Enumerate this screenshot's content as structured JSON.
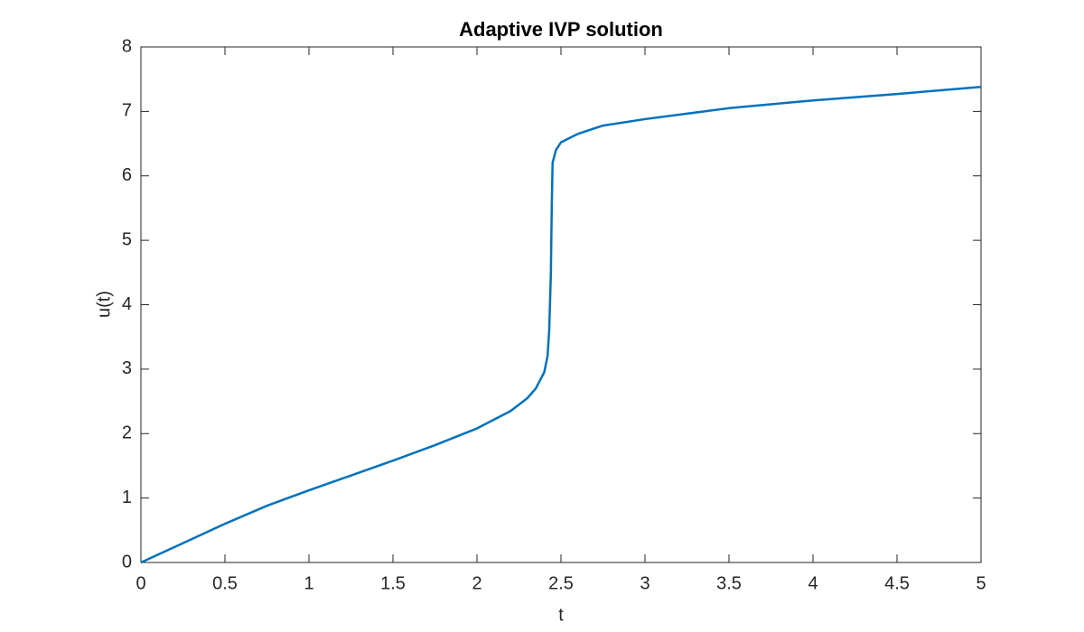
{
  "chart_data": {
    "type": "line",
    "title": "Adaptive IVP solution",
    "x_label": "t",
    "y_label": "u(t)",
    "x": [
      0,
      0.25,
      0.5,
      0.75,
      1,
      1.25,
      1.5,
      1.75,
      2,
      2.2,
      2.3,
      2.35,
      2.4,
      2.42,
      2.43,
      2.44,
      2.445,
      2.45,
      2.47,
      2.5,
      2.6,
      2.75,
      3,
      3.5,
      4,
      4.5,
      5
    ],
    "values": [
      0,
      0.3,
      0.6,
      0.88,
      1.12,
      1.35,
      1.58,
      1.82,
      2.08,
      2.35,
      2.55,
      2.7,
      2.95,
      3.2,
      3.6,
      4.5,
      5.5,
      6.2,
      6.4,
      6.52,
      6.65,
      6.78,
      6.88,
      7.05,
      7.17,
      7.27,
      7.38
    ],
    "color": "#0072bd",
    "xlim": [
      0,
      5
    ],
    "xticks": [
      0,
      0.5,
      1,
      1.5,
      2,
      2.5,
      3,
      3.5,
      4,
      4.5,
      5
    ],
    "ylim": [
      0,
      8
    ],
    "yticks": [
      0,
      1,
      2,
      3,
      4,
      5,
      6,
      7,
      8
    ],
    "grid": false
  }
}
